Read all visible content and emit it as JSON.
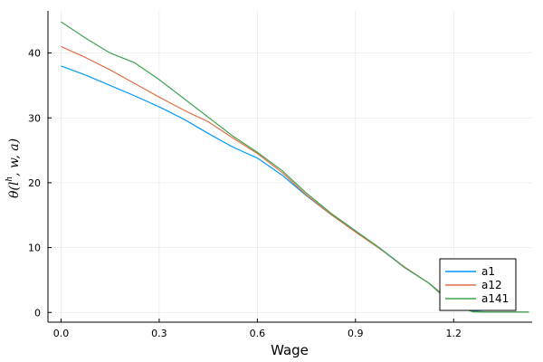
{
  "chart_data": {
    "type": "line",
    "title": "",
    "xlabel": "Wage",
    "ylabel": {
      "prefix": "θ(",
      "var": "l",
      "sup": "h",
      "suffix": ", w, a)"
    },
    "xlim": [
      -0.04,
      1.44
    ],
    "ylim": [
      -1.5,
      46.5
    ],
    "xticks": [
      0.0,
      0.3,
      0.6,
      0.9,
      1.2
    ],
    "xtick_labels": [
      "0.0",
      "0.3",
      "0.6",
      "0.9",
      "1.2"
    ],
    "yticks": [
      0,
      10,
      20,
      30,
      40
    ],
    "ytick_labels": [
      "0",
      "10",
      "20",
      "30",
      "40"
    ],
    "grid": true,
    "legend_position": "bottom-right",
    "series": [
      {
        "name": "a1",
        "color": "#009AFA",
        "x": [
          0.0,
          0.075,
          0.15,
          0.225,
          0.3,
          0.375,
          0.45,
          0.525,
          0.6,
          0.675,
          0.75,
          0.825,
          0.9,
          0.975,
          1.05,
          1.125,
          1.2,
          1.26,
          1.3,
          1.43
        ],
        "y": [
          38.0,
          36.6,
          35.0,
          33.4,
          31.7,
          29.8,
          27.6,
          25.5,
          23.8,
          21.2,
          18.0,
          15.1,
          12.5,
          9.9,
          7.0,
          4.5,
          1.4,
          0.2,
          0.05,
          0.05
        ]
      },
      {
        "name": "a12",
        "color": "#E36F47",
        "x": [
          0.0,
          0.075,
          0.15,
          0.225,
          0.3,
          0.375,
          0.45,
          0.525,
          0.6,
          0.675,
          0.75,
          0.825,
          0.9,
          0.975,
          1.05,
          1.125,
          1.2,
          1.26,
          1.3,
          1.43
        ],
        "y": [
          41.0,
          39.3,
          37.4,
          35.3,
          33.2,
          31.2,
          29.4,
          26.9,
          24.5,
          21.6,
          18.1,
          15.1,
          12.4,
          9.8,
          7.0,
          4.5,
          1.3,
          0.1,
          0.05,
          0.05
        ]
      },
      {
        "name": "a141",
        "color": "#3EA44E",
        "x": [
          0.0,
          0.075,
          0.15,
          0.225,
          0.3,
          0.375,
          0.45,
          0.525,
          0.6,
          0.675,
          0.75,
          0.825,
          0.9,
          0.975,
          1.05,
          1.125,
          1.2,
          1.26,
          1.3,
          1.43
        ],
        "y": [
          44.8,
          42.3,
          40.0,
          38.5,
          35.9,
          33.0,
          30.1,
          27.2,
          24.7,
          21.9,
          18.4,
          15.3,
          12.6,
          9.9,
          6.9,
          4.5,
          1.0,
          0.1,
          0.05,
          0.05
        ]
      }
    ]
  }
}
